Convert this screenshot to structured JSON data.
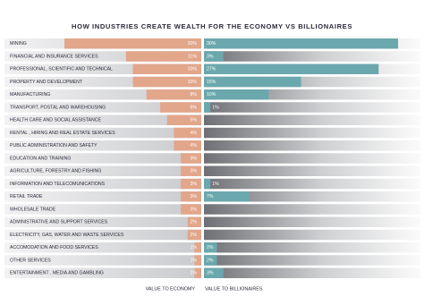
{
  "chart_data": {
    "type": "bar",
    "orientation": "horizontal",
    "title": "HOW INDUSTRIES CREATE WEALTH FOR THE ECONOMY VS BILLIONAIRES",
    "categories": [
      "MINING",
      "FINANCIAL AND INSURANCE SERVICES",
      "PROFESSIONAL, SCIENTIFIC AND TECHNICAL",
      "PROPERTY AND DEVELOPMENT",
      "MANUFACTURING",
      "TRANSPORT, POSTAL AND WAREHOUSING",
      "HEALTH CARE AND SOCIAL ASSISTANCE",
      "RENTAL , HIRING AND REAL ESTATE SERVICES",
      "PUBLIC ADMINISTRATION AND SAFETY",
      "EDUCATION AND TRAINING",
      "AGRICULTURE, FORESTRY AND FISHING",
      "INFORMATION AND TELECOMUNICATIONS",
      "RETAIL TRADE",
      "WHOLESALE TRADE",
      "ADMINISTRATIVE AND SUPPORT SERVICES",
      "ELECTRICITY, GAS, WATER AND WASTE SERVICES",
      "ACCOMODATION AND FOOD SERVICES",
      "OTHER SERVICES",
      "ENTERTAINMENT , MEDIA AND GAMBLING"
    ],
    "series": [
      {
        "name": "VALUE TO ECONOMY",
        "color": "#e2a68b",
        "values": [
          20,
          11,
          10,
          10,
          8,
          6,
          5,
          4,
          4,
          3,
          3,
          3,
          3,
          3,
          2,
          2,
          1,
          1,
          1
        ],
        "value_labels": [
          "20%",
          "11%",
          "10%",
          "10%",
          "8%",
          "6%",
          "5%",
          "4%",
          "4%",
          "3%",
          "3%",
          "3%",
          "3%",
          "3%",
          "2%",
          "2%",
          "1%",
          "1%",
          "1%"
        ]
      },
      {
        "name": "VALUE TO BILLIONAIRES",
        "color": "#6ba8ad",
        "values": [
          30,
          3,
          27,
          15,
          10,
          1,
          null,
          null,
          null,
          null,
          null,
          1,
          7,
          null,
          null,
          null,
          2,
          2,
          3
        ],
        "value_labels": [
          "30%",
          "3%",
          "27%",
          "15%",
          "10%",
          "1%",
          null,
          null,
          null,
          null,
          null,
          "1%",
          "7%",
          null,
          null,
          null,
          "2%",
          "2%",
          "3%"
        ]
      }
    ]
  }
}
